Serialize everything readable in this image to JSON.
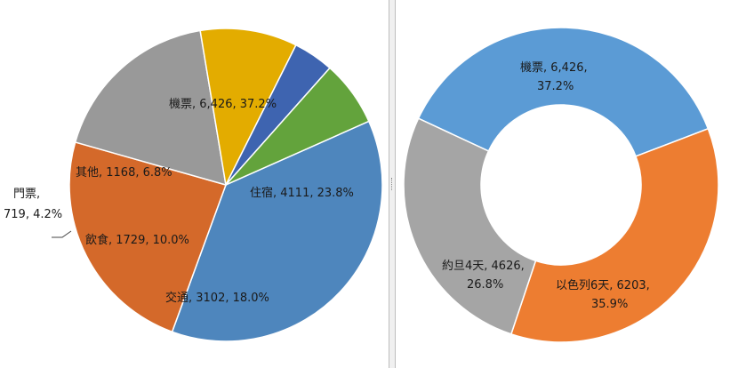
{
  "chart_data": [
    {
      "type": "pie",
      "title": "",
      "legend": "none",
      "colors": [
        "#4e86bd",
        "#d4692a",
        "#999999",
        "#e3ac00",
        "#3e64b0",
        "#63a33c"
      ],
      "slices": [
        {
          "name": "機票",
          "value": 6426,
          "percent": 37.2,
          "label": "機票, 6,426, 37.2%"
        },
        {
          "name": "住宿",
          "value": 4111,
          "percent": 23.8,
          "label": "住宿, 4111, 23.8%"
        },
        {
          "name": "交通",
          "value": 3102,
          "percent": 18.0,
          "label": "交通, 3102, 18.0%"
        },
        {
          "name": "飲食",
          "value": 1729,
          "percent": 10.0,
          "label": "飲食, 1729, 10.0%"
        },
        {
          "name": "門票",
          "value": 719,
          "percent": 4.2,
          "label_line1": "門票,",
          "label_line2": "719, 4.2%"
        },
        {
          "name": "其他",
          "value": 1168,
          "percent": 6.8,
          "label": "其他, 1168, 6.8%"
        }
      ]
    },
    {
      "type": "pie",
      "variant": "donut",
      "title": "",
      "legend": "none",
      "colors": [
        "#5b9bd5",
        "#ed7d31",
        "#a5a5a5"
      ],
      "slices": [
        {
          "name": "機票",
          "value": 6426,
          "percent": 37.2,
          "label_line1": "機票, 6,426,",
          "label_line2": "37.2%"
        },
        {
          "name": "以色列6天",
          "value": 6203,
          "percent": 35.9,
          "label_line1": "以色列6天, 6203,",
          "label_line2": "35.9%"
        },
        {
          "name": "約旦4天",
          "value": 4626,
          "percent": 26.8,
          "label_line1": "約旦4天, 4626,",
          "label_line2": "26.8%"
        }
      ]
    }
  ]
}
